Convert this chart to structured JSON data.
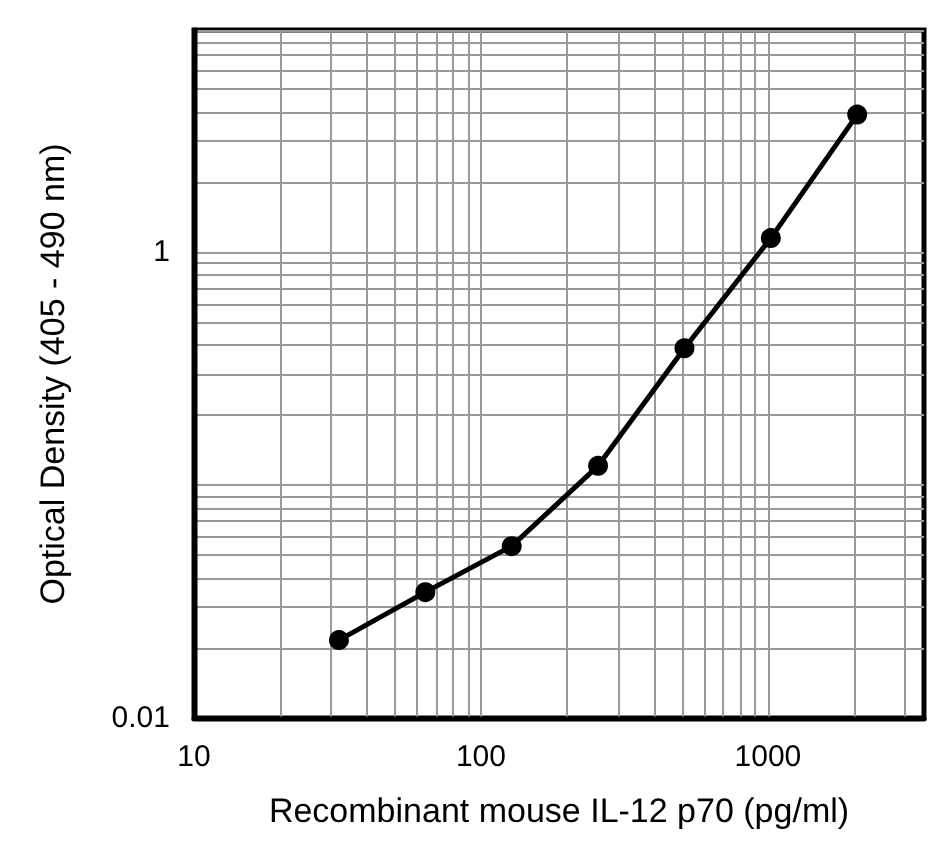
{
  "chart_data": {
    "type": "line",
    "xlabel": "Recombinant mouse IL-12 p70 (pg/ml)",
    "ylabel": "Optical Density (405 - 490 nm)",
    "x": [
      32,
      64,
      128,
      256,
      512,
      1024,
      2048
    ],
    "series": [
      {
        "color": "#000000",
        "values": [
          0.0216,
          0.0347,
          0.0547,
          0.121,
          0.387,
          1.15,
          3.9
        ]
      }
    ],
    "log": "xy",
    "xlim": [
      10,
      3500
    ],
    "xticks": [
      10,
      100,
      1000
    ],
    "ylim": [
      0.01,
      9
    ],
    "yticks": [
      0.01,
      1
    ],
    "grid": true,
    "marker": "circle",
    "line_style": "solid"
  }
}
